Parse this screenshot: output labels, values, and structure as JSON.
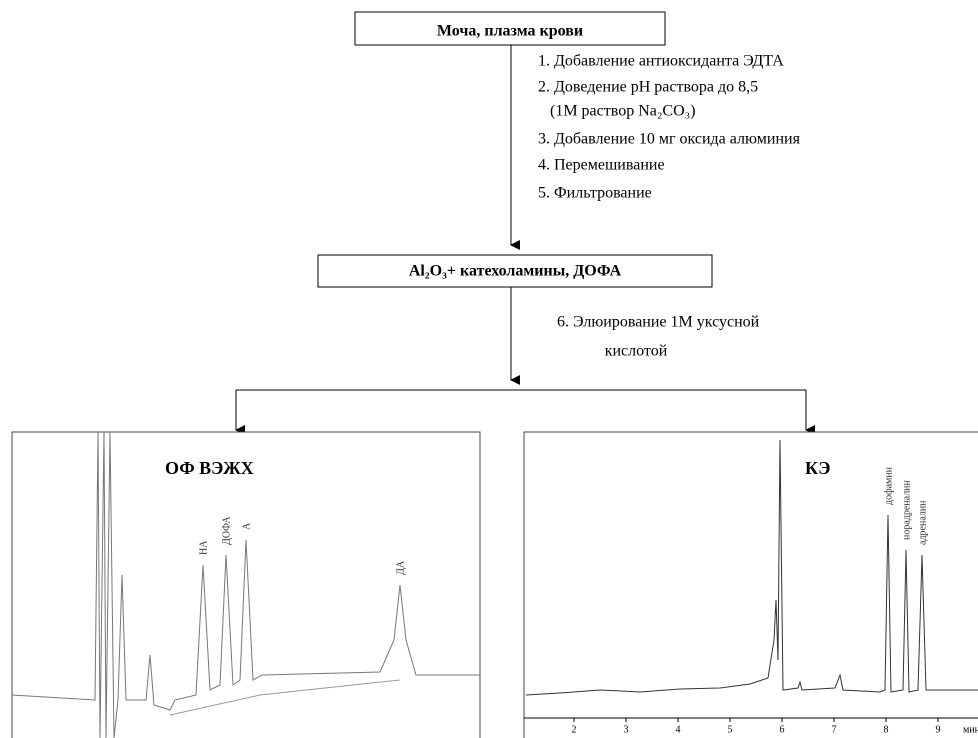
{
  "source": {
    "label": "Моча, плазма крови"
  },
  "steps_1": [
    "1. Добавление антиоксиданта ЭДТА",
    "2. Доведение pH раствора до 8,5",
    "(1М раствор Na₂CO₃)",
    "3. Добавление 10 мг оксида алюминия",
    "4. Перемешивание",
    "5. Фильтрование"
  ],
  "intermediate": {
    "label": "Al₂O₃+ катехоламины, ДОФА"
  },
  "steps_2": [
    "6. Элюирование 1М уксусной",
    "кислотой"
  ],
  "panels": [
    {
      "title": "ОФ ВЭЖХ",
      "peaks": [
        "НА",
        "ДОФА",
        "А",
        "ДА"
      ]
    },
    {
      "title": "КЭ",
      "peaks": [
        "дофамин",
        "норадреналин",
        "адреналин"
      ],
      "xticks": [
        2,
        3,
        4,
        5,
        6,
        7,
        8,
        9
      ],
      "xlabel": "мин"
    }
  ]
}
